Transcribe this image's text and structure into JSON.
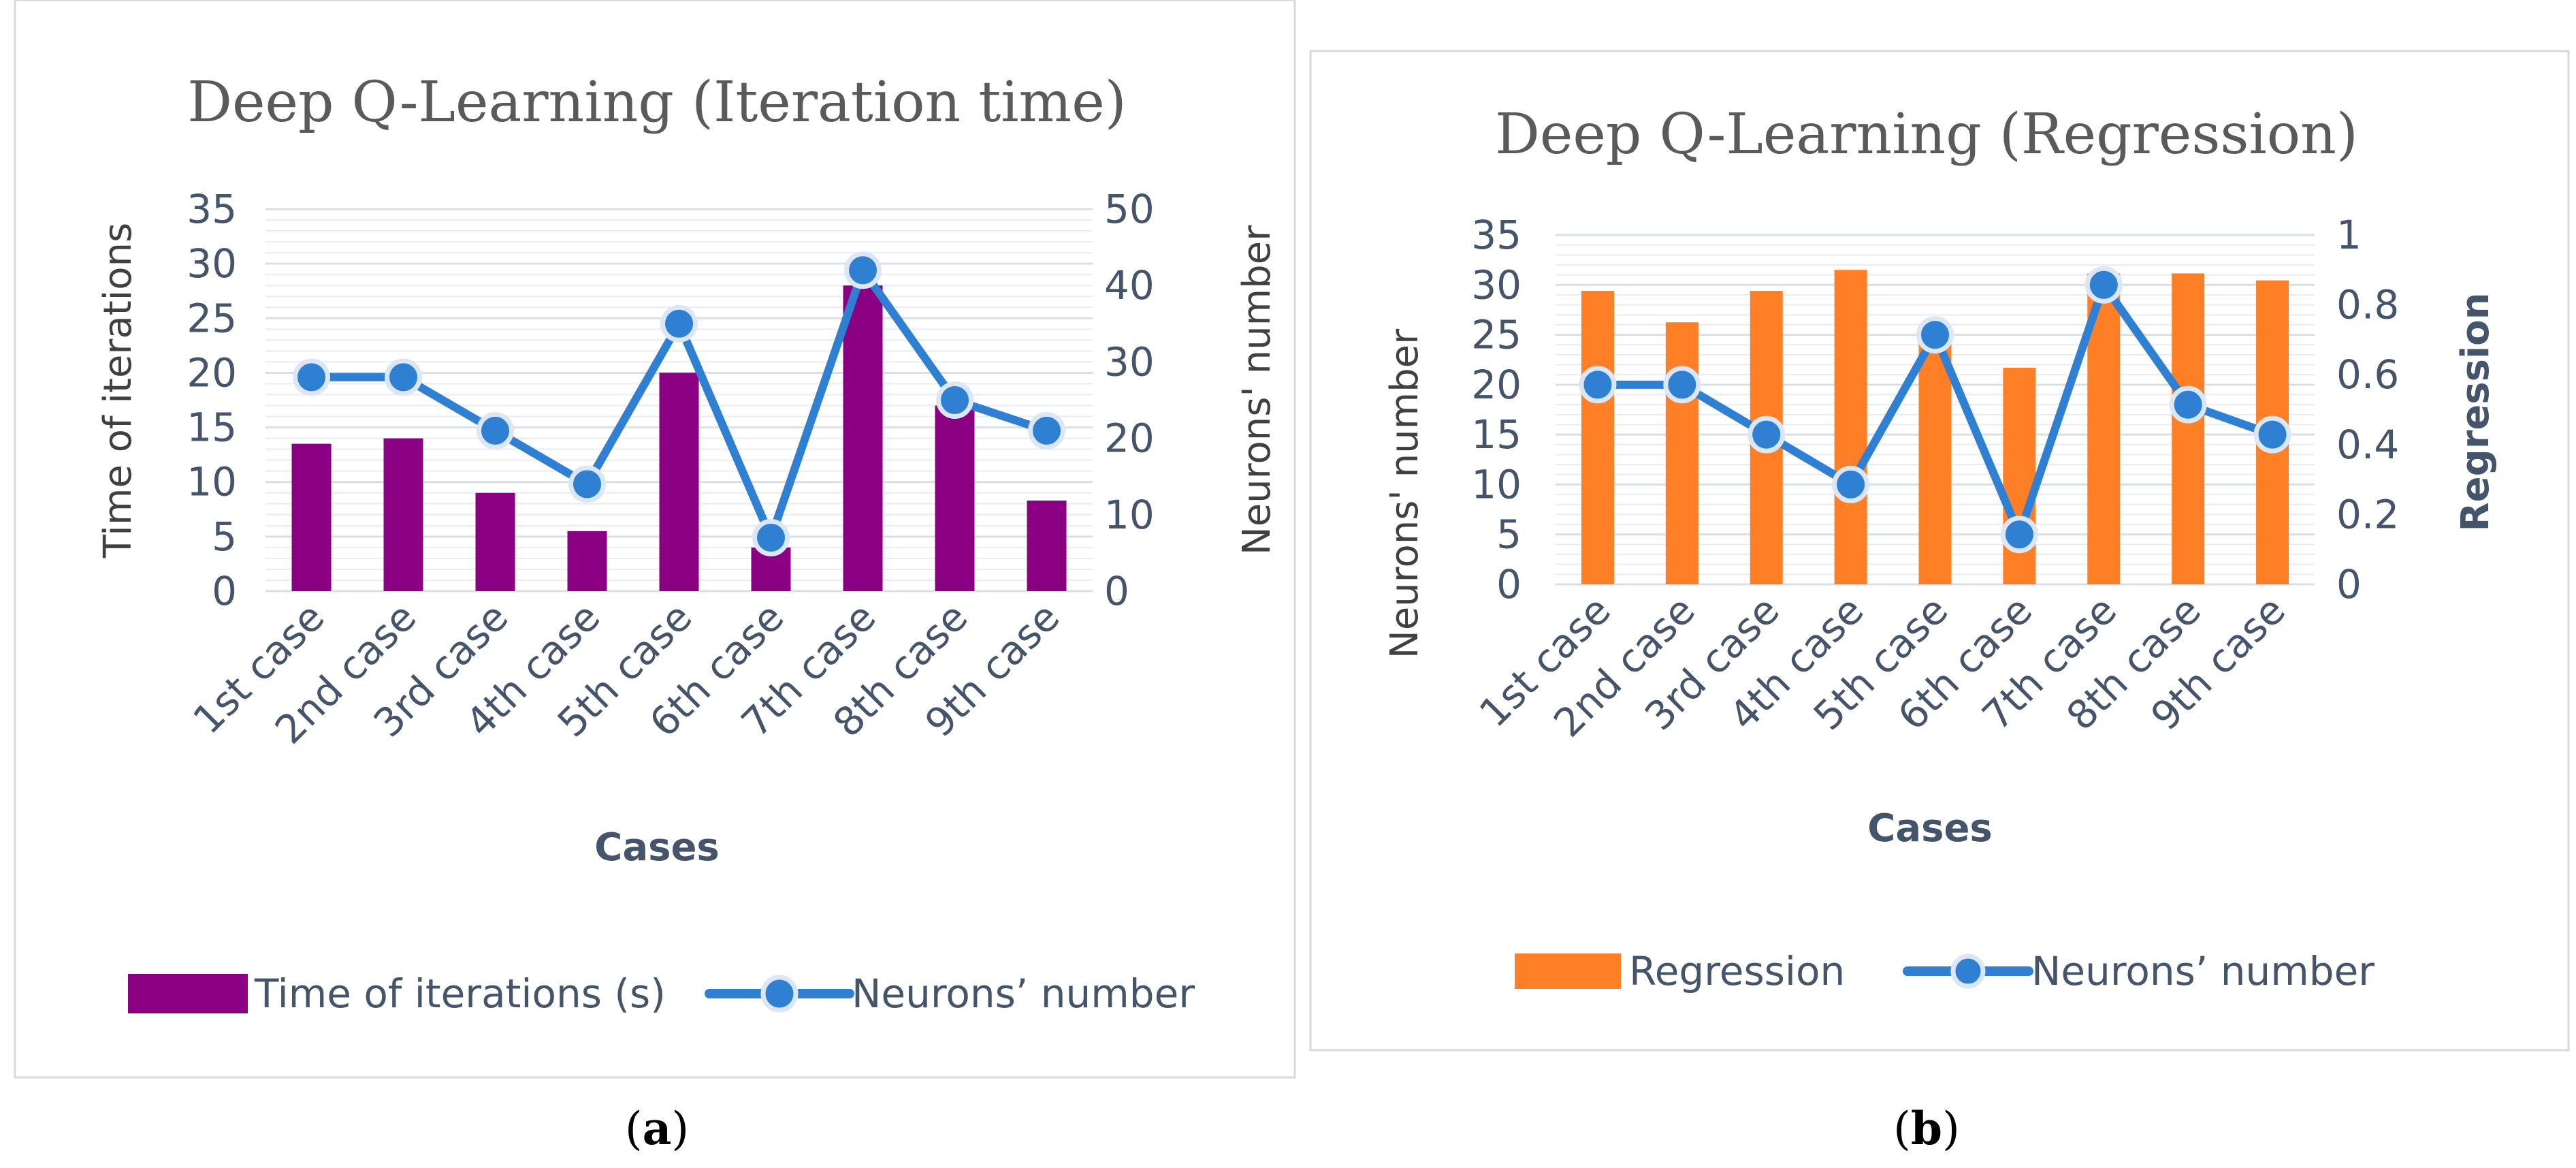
{
  "chart_data": [
    {
      "type": "bar+line",
      "title": "Deep Q-Learning (Iteration time)",
      "caption": "a",
      "categories": [
        "1st case",
        "2nd case",
        "3rd case",
        "4th case",
        "5th case",
        "6th case",
        "7th case",
        "8th case",
        "9th case"
      ],
      "xlabel": "Cases",
      "ylabel": "Time of iterations",
      "y2label": "Neurons' number",
      "ylim": [
        0,
        35
      ],
      "y2lim": [
        0,
        50
      ],
      "yticks": [
        0,
        5,
        10,
        15,
        20,
        25,
        30,
        35
      ],
      "y2ticks": [
        0,
        10,
        20,
        30,
        40,
        50
      ],
      "series": [
        {
          "name": "Time of iterations (s)",
          "type": "bar",
          "axis": "left",
          "color": "#8b0083",
          "values": [
            13.5,
            14,
            9,
            5.5,
            20,
            4,
            28,
            17,
            8.3
          ]
        },
        {
          "name": "Neurons’ number",
          "type": "line",
          "axis": "right",
          "color": "#2f7fd3",
          "values": [
            28,
            28,
            21,
            14,
            35,
            7,
            42,
            25,
            21
          ]
        }
      ],
      "legend_position": "bottom",
      "grid": true
    },
    {
      "type": "bar+line",
      "title": "Deep Q-Learning (Regression)",
      "caption": "b",
      "categories": [
        "1st case",
        "2nd case",
        "3rd case",
        "4th case",
        "5th case",
        "6th case",
        "7th case",
        "8th case",
        "9th case"
      ],
      "xlabel": "Cases",
      "ylabel": "Neurons' number",
      "y2label": "Regression",
      "ylim": [
        0,
        35
      ],
      "y2lim": [
        0,
        1
      ],
      "yticks": [
        0,
        5,
        10,
        15,
        20,
        25,
        30,
        35
      ],
      "y2ticks": [
        0,
        0.2,
        0.4,
        0.6,
        0.8,
        1
      ],
      "series": [
        {
          "name": "Regression",
          "type": "bar",
          "axis": "right",
          "color": "#ff7f27",
          "values": [
            0.84,
            0.75,
            0.84,
            0.9,
            0.69,
            0.62,
            0.89,
            0.89,
            0.87
          ]
        },
        {
          "name": "Neurons’ number",
          "type": "line",
          "axis": "left",
          "color": "#2f7fd3",
          "values": [
            20,
            20,
            15,
            10,
            25,
            5,
            30,
            18,
            15
          ]
        }
      ],
      "legend_position": "bottom",
      "grid": true
    }
  ]
}
